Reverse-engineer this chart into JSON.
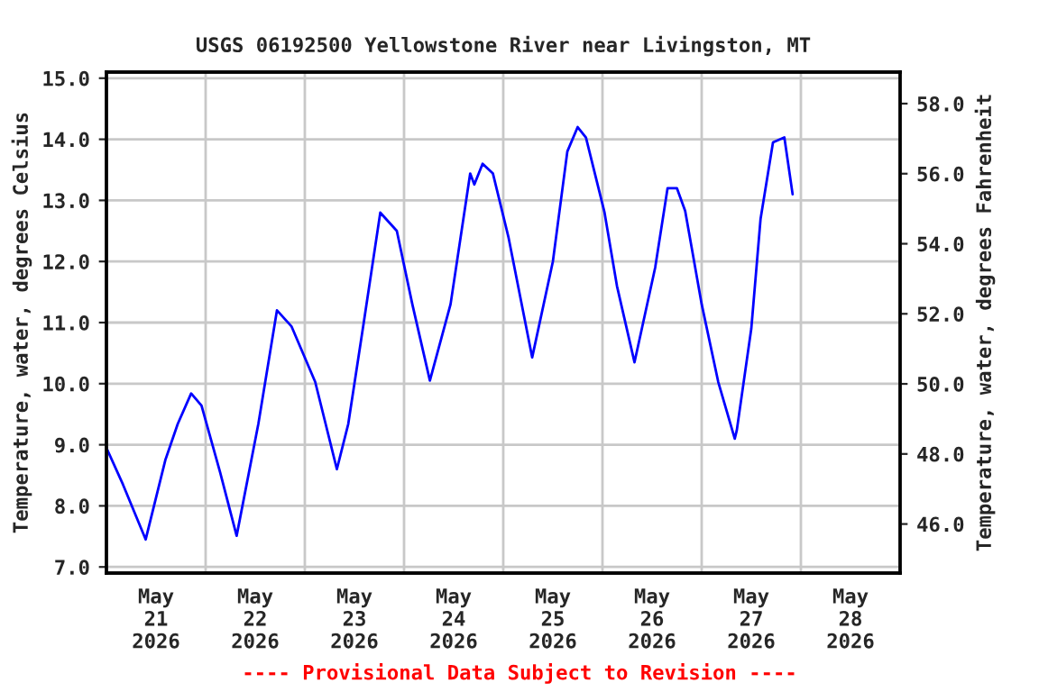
{
  "chart_data": {
    "type": "line",
    "title": "USGS 06192500 Yellowstone River near Livingston, MT",
    "ylabel": "Temperature, water, degrees Celsius",
    "y2label": "Temperature, water, degrees Fahrenheit",
    "annotations": [
      "---- Provisional Data Subject to Revision ----"
    ],
    "xlim": [
      "2026-05-21T00:00",
      "2026-05-29T00:00"
    ],
    "xticks": [
      {
        "value": "2026-05-21T00:00",
        "label": null
      },
      {
        "value": "2026-05-21T12:00",
        "label": "May\n21\n2026"
      },
      {
        "value": "2026-05-22T00:00",
        "label": null
      },
      {
        "value": "2026-05-22T12:00",
        "label": "May\n22\n2026"
      },
      {
        "value": "2026-05-23T00:00",
        "label": null
      },
      {
        "value": "2026-05-23T12:00",
        "label": "May\n23\n2026"
      },
      {
        "value": "2026-05-24T00:00",
        "label": null
      },
      {
        "value": "2026-05-24T12:00",
        "label": "May\n24\n2026"
      },
      {
        "value": "2026-05-25T00:00",
        "label": null
      },
      {
        "value": "2026-05-25T12:00",
        "label": "May\n25\n2026"
      },
      {
        "value": "2026-05-26T00:00",
        "label": null
      },
      {
        "value": "2026-05-26T12:00",
        "label": "May\n26\n2026"
      },
      {
        "value": "2026-05-27T00:00",
        "label": null
      },
      {
        "value": "2026-05-27T12:00",
        "label": "May\n27\n2026"
      },
      {
        "value": "2026-05-28T00:00",
        "label": null
      },
      {
        "value": "2026-05-28T12:00",
        "label": "May\n28\n2026"
      },
      {
        "value": "2026-05-29T00:00",
        "label": null
      }
    ],
    "ylim": [
      6.9,
      15.1
    ],
    "yticks": [
      {
        "value": 7,
        "label": "7.0"
      },
      {
        "value": 8,
        "label": "8.0"
      },
      {
        "value": 9,
        "label": "9.0"
      },
      {
        "value": 10,
        "label": "10.0"
      },
      {
        "value": 11,
        "label": "11.0"
      },
      {
        "value": 12,
        "label": "12.0"
      },
      {
        "value": 13,
        "label": "13.0"
      },
      {
        "value": 14,
        "label": "14.0"
      },
      {
        "value": 15,
        "label": "15.0"
      }
    ],
    "y2lim": [
      44.6,
      58.9
    ],
    "y2ticks": [
      {
        "value": 46,
        "label": "46.0"
      },
      {
        "value": 48,
        "label": "48.0"
      },
      {
        "value": 50,
        "label": "50.0"
      },
      {
        "value": 52,
        "label": "52.0"
      },
      {
        "value": 54,
        "label": "54.0"
      },
      {
        "value": 56,
        "label": "56.0"
      },
      {
        "value": 58,
        "label": "58.0"
      }
    ],
    "grid": true,
    "marker": "none",
    "line_style": "solid",
    "series": [
      {
        "color": "#0000ff",
        "x": [
          "2026-05-21T00:00",
          "2026-05-21T04:00",
          "2026-05-21T09:30",
          "2026-05-21T14:15",
          "2026-05-21T17:15",
          "2026-05-21T20:30",
          "2026-05-21T23:00",
          "2026-05-22T03:30",
          "2026-05-22T07:30",
          "2026-05-22T12:45",
          "2026-05-22T17:15",
          "2026-05-22T20:45",
          "2026-05-23T02:30",
          "2026-05-23T07:45",
          "2026-05-23T10:30",
          "2026-05-23T14:15",
          "2026-05-23T18:15",
          "2026-05-23T22:15",
          "2026-05-24T02:00",
          "2026-05-24T06:15",
          "2026-05-24T11:15",
          "2026-05-24T16:00",
          "2026-05-24T17:00",
          "2026-05-24T19:00",
          "2026-05-24T21:30",
          "2026-05-25T01:15",
          "2026-05-25T07:00",
          "2026-05-25T12:00",
          "2026-05-25T15:30",
          "2026-05-25T18:00",
          "2026-05-25T20:00",
          "2026-05-26T00:30",
          "2026-05-26T03:30",
          "2026-05-26T07:45",
          "2026-05-26T12:45",
          "2026-05-26T15:45",
          "2026-05-26T18:00",
          "2026-05-26T20:00",
          "2026-05-27T00:00",
          "2026-05-27T04:00",
          "2026-05-27T08:00",
          "2026-05-27T08:30",
          "2026-05-27T12:00",
          "2026-05-27T14:15",
          "2026-05-27T17:15",
          "2026-05-27T20:00",
          "2026-05-27T22:00"
        ],
        "values": [
          8.95,
          8.35,
          7.45,
          8.75,
          9.34,
          9.84,
          9.64,
          8.55,
          7.51,
          9.34,
          11.2,
          10.94,
          10.03,
          8.6,
          9.34,
          11.0,
          12.8,
          12.5,
          11.3,
          10.05,
          11.3,
          13.44,
          13.26,
          13.6,
          13.44,
          12.4,
          10.43,
          12.0,
          13.8,
          14.2,
          14.03,
          12.8,
          11.6,
          10.35,
          11.9,
          13.2,
          13.2,
          12.83,
          11.3,
          10.03,
          9.1,
          9.24,
          10.9,
          12.7,
          13.95,
          14.03,
          13.1
        ]
      }
    ]
  }
}
